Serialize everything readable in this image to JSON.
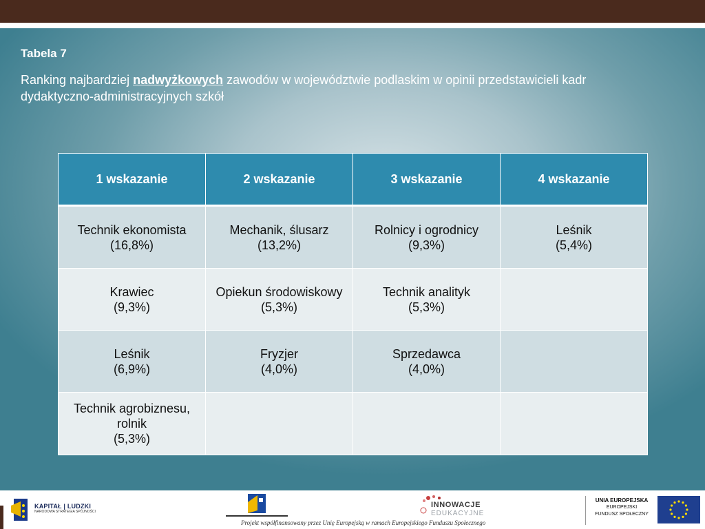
{
  "heading": {
    "label": "Tabela 7",
    "subtitle_before": "Ranking najbardziej ",
    "subtitle_emph": "nadwyżkowych",
    "subtitle_after": " zawodów w województwie podlaskim w opinii przedstawicieli kadr dydaktyczno-administracyjnych szkół"
  },
  "table": {
    "columns": [
      "1 wskazanie",
      "2 wskazanie",
      "3 wskazanie",
      "4 wskazanie"
    ],
    "rows": [
      [
        {
          "name": "Technik ekonomista",
          "pct": "(16,8%)"
        },
        {
          "name": "Mechanik, ślusarz",
          "pct": "(13,2%)"
        },
        {
          "name": "Rolnicy i ogrodnicy",
          "pct": "(9,3%)"
        },
        {
          "name": "Leśnik",
          "pct": "(5,4%)"
        }
      ],
      [
        {
          "name": "Krawiec",
          "pct": "(9,3%)"
        },
        {
          "name": "Opiekun środowiskowy",
          "pct": "(5,3%)"
        },
        {
          "name": "Technik analityk",
          "pct": "(5,3%)"
        },
        {
          "name": "",
          "pct": ""
        }
      ],
      [
        {
          "name": "Leśnik",
          "pct": "(6,9%)"
        },
        {
          "name": "Fryzjer",
          "pct": "(4,0%)"
        },
        {
          "name": "Sprzedawca",
          "pct": "(4,0%)"
        },
        {
          "name": "",
          "pct": ""
        }
      ],
      [
        {
          "name": "Technik agrobiznesu, rolnik",
          "pct": "(5,3%)"
        },
        {
          "name": "",
          "pct": ""
        },
        {
          "name": "",
          "pct": ""
        },
        {
          "name": "",
          "pct": ""
        }
      ]
    ]
  },
  "footer": {
    "kapital_title": "KAPITAŁ | LUDZKI",
    "kapital_sub": "NARODOWA STRATEGIA SPÓJNOŚCI",
    "innowacje_title": "INNOWACJE",
    "innowacje_sub": "EDUKACYJNE",
    "project_text": "Projekt współfinansowany przez Unię Europejską w ramach Europejskiego Funduszu Społecznego",
    "eu_line1": "UNIA EUROPEJSKA",
    "eu_line2": "EUROPEJSKI",
    "eu_line3": "FUNDUSZ SPOŁECZNY"
  },
  "colors": {
    "top_bar": "#4a2a1d",
    "header_fill": "#2e8bae",
    "row_odd": "#cfdde2",
    "row_even": "#e8eef0",
    "background": "#3e7f90"
  }
}
